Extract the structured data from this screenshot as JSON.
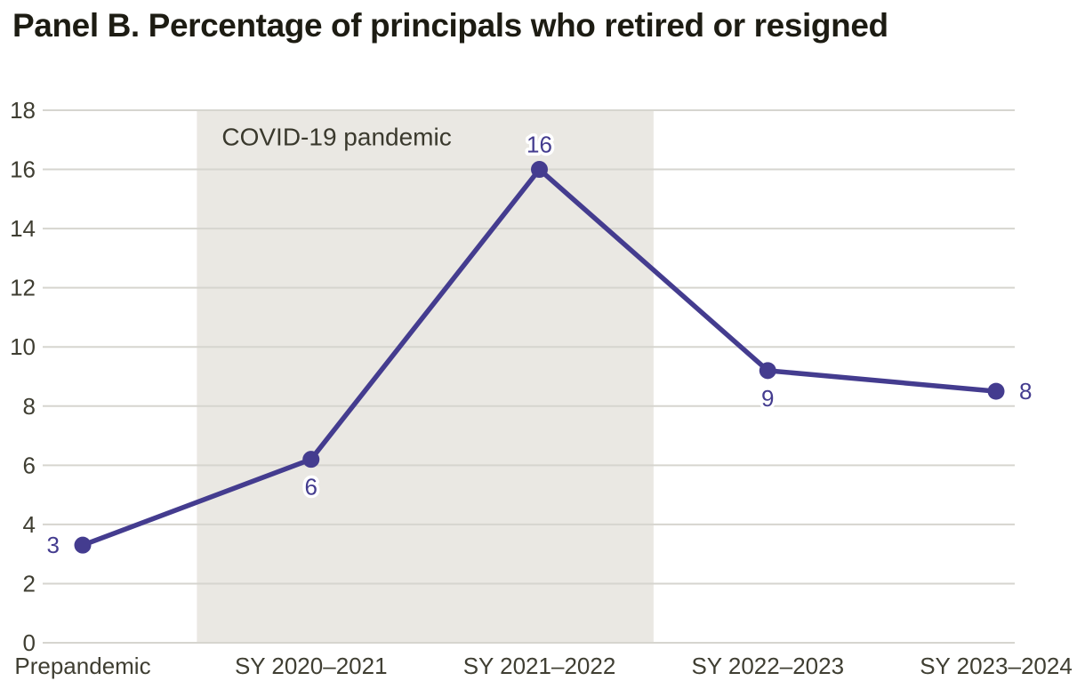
{
  "chart_data": {
    "type": "line",
    "title": "Panel B. Percentage of principals who retired or resigned",
    "categories": [
      "Prepandemic",
      "SY 2020–2021",
      "SY 2021–2022",
      "SY 2022–2023",
      "SY 2023–2024"
    ],
    "series": [
      {
        "name": "Percentage of principals who retired or resigned",
        "values": [
          3.3,
          6.2,
          16,
          9.2,
          8.5
        ],
        "point_labels": [
          "3",
          "6",
          "16",
          "9",
          "8"
        ],
        "label_positions": [
          "left",
          "below",
          "above",
          "below",
          "right"
        ],
        "color": "#443c8f"
      }
    ],
    "xlabel": "",
    "ylabel": "",
    "ylim": [
      0,
      18
    ],
    "ytick_step": 2,
    "grid": "horizontal",
    "legend": "none",
    "annotation_band": {
      "label": "COVID-19 pandemic",
      "from_category": "SY 2020–2021",
      "to_category": "SY 2021–2022",
      "fill": "#eae8e3",
      "label_color": "#3a392d"
    },
    "colors": {
      "line": "#443c8f",
      "point": "#443c8f",
      "point_label": "#443c8f",
      "gridline": "#d6d5cf",
      "tick_label": "#3f3e32",
      "title": "#1d1c13",
      "background": "#ffffff"
    }
  }
}
